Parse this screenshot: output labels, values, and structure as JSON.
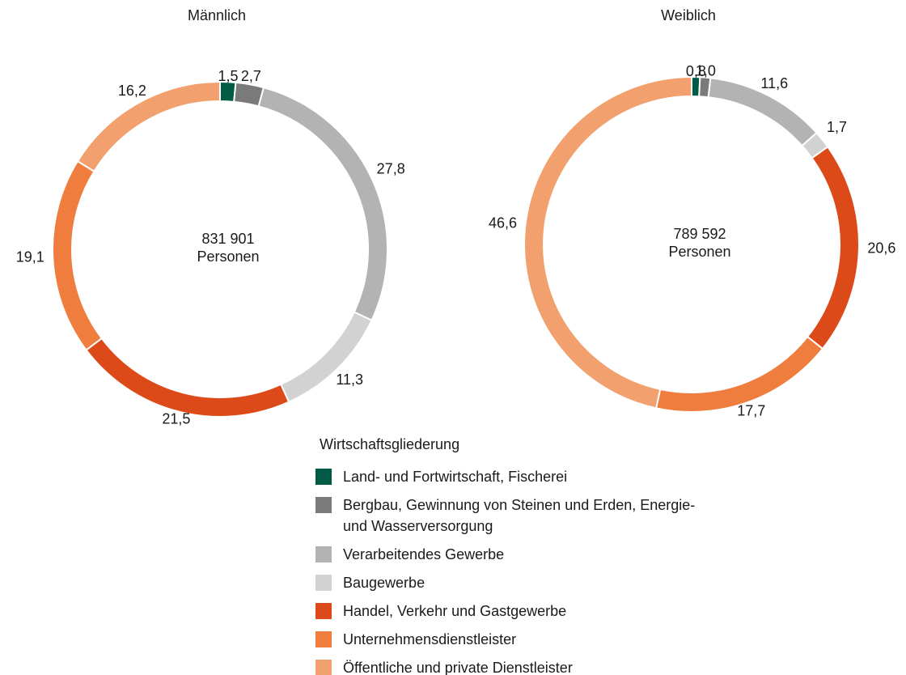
{
  "chart_data": [
    {
      "type": "pie",
      "title": "Männlich",
      "categories": [
        "Land- und Fortwirtschaft, Fischerei",
        "Bergbau, Gewinnung von Steinen und Erden, Energie- und Wasserversorgung",
        "Verarbeitendes Gewerbe",
        "Baugewerbe",
        "Handel, Verkehr und Gastgewerbe",
        "Unternehmensdienstleister",
        "Öffentliche und private Dienstleister"
      ],
      "values": [
        1.5,
        2.7,
        27.8,
        11.3,
        21.5,
        19.1,
        16.2
      ],
      "value_labels": [
        "1,5",
        "2,7",
        "27,8",
        "11,3",
        "21,5",
        "19,1",
        "16,2"
      ],
      "colors": [
        "#005a45",
        "#7a7a7a",
        "#b3b3b3",
        "#d2d2d2",
        "#dd4a1a",
        "#ee7d3e",
        "#f2a06d"
      ],
      "annotations": [
        "831 901",
        "Personen"
      ],
      "legend_title": "Wirtschaftsgliederung"
    },
    {
      "type": "pie",
      "title": "Weiblich",
      "categories": [
        "Land- und Fortwirtschaft, Fischerei",
        "Bergbau, Gewinnung von Steinen und Erden, Energie- und Wasserversorgung",
        "Verarbeitendes Gewerbe",
        "Baugewerbe",
        "Handel, Verkehr und Gastgewerbe",
        "Unternehmensdienstleister",
        "Öffentliche und private Dienstleister"
      ],
      "values": [
        0.8,
        1.0,
        11.6,
        1.7,
        20.6,
        17.7,
        46.6
      ],
      "value_labels": [
        "0,8",
        "1,0",
        "11,6",
        "1,7",
        "20,6",
        "17,7",
        "46,6"
      ],
      "colors": [
        "#005a45",
        "#7a7a7a",
        "#b3b3b3",
        "#d2d2d2",
        "#dd4a1a",
        "#ee7d3e",
        "#f2a06d"
      ],
      "annotations": [
        "789 592",
        "Personen"
      ]
    }
  ]
}
